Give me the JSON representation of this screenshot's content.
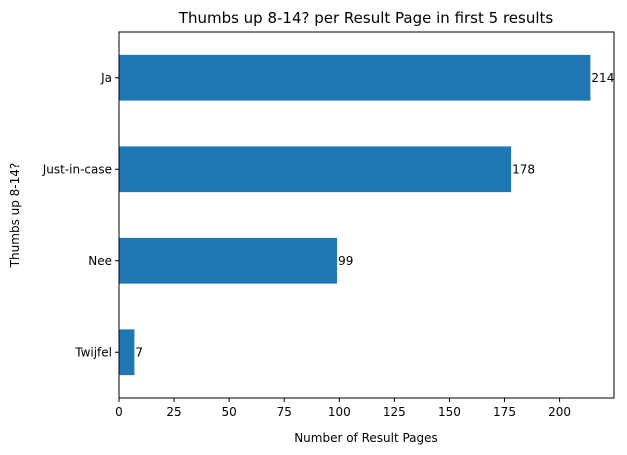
{
  "chart_data": {
    "type": "bar",
    "orientation": "horizontal",
    "title": "Thumbs up 8-14? per Result Page in first 5 results",
    "xlabel": "Number of Result Pages",
    "ylabel": "Thumbs up 8-14?",
    "categories": [
      "Ja",
      "Just-in-case",
      "Nee",
      "Twijfel"
    ],
    "values": [
      214,
      178,
      99,
      7
    ],
    "data_labels": [
      "214",
      "178",
      "99",
      "7"
    ],
    "xlim": [
      0,
      224.7
    ],
    "xticks": [
      0,
      25,
      50,
      75,
      100,
      125,
      150,
      175,
      200
    ],
    "xtick_labels": [
      "0",
      "25",
      "50",
      "75",
      "100",
      "125",
      "150",
      "175",
      "200"
    ],
    "grid": false,
    "bar_color": "#1f77b4"
  }
}
